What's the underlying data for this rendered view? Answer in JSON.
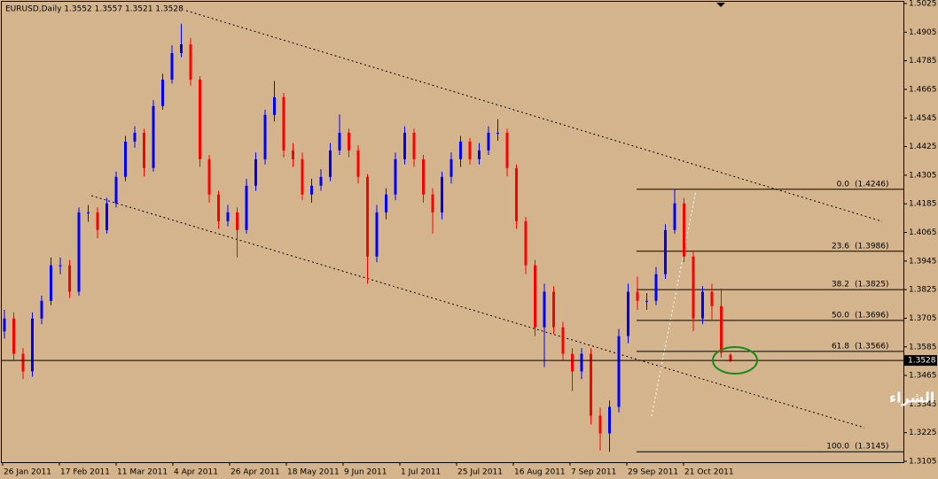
{
  "chart_data": {
    "type": "candlestick",
    "title": "EURUSD,Daily  1.3552 1.3557 1.3521 1.3528",
    "up_color": "#0000ff",
    "down_color": "#ff0000",
    "background": "#d4b48c",
    "ylim": [
      1.3105,
      1.5025
    ],
    "yticks": [
      1.5025,
      1.4905,
      1.4785,
      1.4665,
      1.4545,
      1.4425,
      1.4305,
      1.4185,
      1.4065,
      1.3945,
      1.3825,
      1.3705,
      1.3585,
      1.3465,
      1.3345,
      1.3225,
      1.3105
    ],
    "x_labels": [
      "26 Jan 2011",
      "17 Feb 2011",
      "11 Mar 2011",
      "4 Apr 2011",
      "26 Apr 2011",
      "18 May 2011",
      "9 Jun 2011",
      "1 Jul 2011",
      "25 Jul 2011",
      "16 Aug 2011",
      "7 Sep 2011",
      "29 Sep 2011",
      "21 Oct 2011"
    ],
    "last_price": 1.3528,
    "fibonacci": [
      {
        "level": "0.0",
        "price": 1.4246,
        "price_label": "(1.4246)"
      },
      {
        "level": "23.6",
        "price": 1.3986,
        "price_label": "(1.3986)"
      },
      {
        "level": "38.2",
        "price": 1.3825,
        "price_label": "(1.3825)"
      },
      {
        "level": "50.0",
        "price": 1.3696,
        "price_label": "(1.3696)"
      },
      {
        "level": "61.8",
        "price": 1.3566,
        "price_label": "(1.3566)"
      },
      {
        "level": "100.0",
        "price": 1.3145,
        "price_label": "(1.3145)"
      }
    ],
    "annotation": "اغلاق دايلي سلبي لا يشجع على الشراء",
    "candles": [
      [
        1.365,
        1.374,
        1.362,
        1.3704
      ],
      [
        1.3704,
        1.373,
        1.353,
        1.3556
      ],
      [
        1.3556,
        1.358,
        1.345,
        1.3482
      ],
      [
        1.3482,
        1.373,
        1.346,
        1.3704
      ],
      [
        1.3704,
        1.38,
        1.368,
        1.3778
      ],
      [
        1.3778,
        1.396,
        1.376,
        1.3927
      ],
      [
        1.3927,
        1.396,
        1.389,
        1.3927
      ],
      [
        1.3927,
        1.395,
        1.379,
        1.3816
      ],
      [
        1.3816,
        1.417,
        1.38,
        1.4149
      ],
      [
        1.4149,
        1.418,
        1.411,
        1.4149
      ],
      [
        1.4149,
        1.417,
        1.404,
        1.4075
      ],
      [
        1.4075,
        1.421,
        1.406,
        1.4187
      ],
      [
        1.4187,
        1.432,
        1.417,
        1.4298
      ],
      [
        1.4298,
        1.447,
        1.428,
        1.4446
      ],
      [
        1.4446,
        1.451,
        1.442,
        1.4483
      ],
      [
        1.4483,
        1.45,
        1.43,
        1.4335
      ],
      [
        1.4335,
        1.462,
        1.432,
        1.4595
      ],
      [
        1.4595,
        1.473,
        1.458,
        1.4706
      ],
      [
        1.4706,
        1.485,
        1.469,
        1.4817
      ],
      [
        1.4817,
        1.494,
        1.48,
        1.4854
      ],
      [
        1.4854,
        1.488,
        1.468,
        1.4706
      ],
      [
        1.4706,
        1.472,
        1.434,
        1.4372
      ],
      [
        1.4372,
        1.439,
        1.419,
        1.4224
      ],
      [
        1.4224,
        1.424,
        1.408,
        1.4112
      ],
      [
        1.4112,
        1.418,
        1.409,
        1.4149
      ],
      [
        1.4149,
        1.417,
        1.396,
        1.4075
      ],
      [
        1.4075,
        1.429,
        1.406,
        1.4261
      ],
      [
        1.4261,
        1.44,
        1.424,
        1.4372
      ],
      [
        1.4372,
        1.458,
        1.435,
        1.4558
      ],
      [
        1.4558,
        1.47,
        1.453,
        1.4632
      ],
      [
        1.4632,
        1.465,
        1.438,
        1.4409
      ],
      [
        1.4409,
        1.444,
        1.434,
        1.4372
      ],
      [
        1.4372,
        1.44,
        1.42,
        1.4224
      ],
      [
        1.4224,
        1.429,
        1.419,
        1.4261
      ],
      [
        1.4261,
        1.433,
        1.424,
        1.4298
      ],
      [
        1.4298,
        1.444,
        1.428,
        1.4409
      ],
      [
        1.4409,
        1.456,
        1.439,
        1.4483
      ],
      [
        1.4483,
        1.45,
        1.438,
        1.4409
      ],
      [
        1.4409,
        1.443,
        1.427,
        1.4298
      ],
      [
        1.4298,
        1.431,
        1.385,
        1.3964
      ],
      [
        1.3964,
        1.418,
        1.394,
        1.4149
      ],
      [
        1.4149,
        1.425,
        1.412,
        1.4224
      ],
      [
        1.4224,
        1.44,
        1.42,
        1.4372
      ],
      [
        1.4372,
        1.451,
        1.435,
        1.4483
      ],
      [
        1.4483,
        1.45,
        1.434,
        1.4372
      ],
      [
        1.4372,
        1.439,
        1.419,
        1.4224
      ],
      [
        1.4224,
        1.425,
        1.406,
        1.4149
      ],
      [
        1.4149,
        1.432,
        1.412,
        1.4298
      ],
      [
        1.4298,
        1.44,
        1.427,
        1.4372
      ],
      [
        1.4372,
        1.447,
        1.434,
        1.4446
      ],
      [
        1.4446,
        1.446,
        1.435,
        1.4372
      ],
      [
        1.4372,
        1.444,
        1.435,
        1.4409
      ],
      [
        1.4409,
        1.451,
        1.439,
        1.4483
      ],
      [
        1.4483,
        1.454,
        1.445,
        1.4483
      ],
      [
        1.4483,
        1.45,
        1.43,
        1.4335
      ],
      [
        1.4335,
        1.435,
        1.408,
        1.4112
      ],
      [
        1.4112,
        1.413,
        1.389,
        1.3927
      ],
      [
        1.3927,
        1.395,
        1.363,
        1.3667
      ],
      [
        1.3667,
        1.385,
        1.35,
        1.3816
      ],
      [
        1.3816,
        1.384,
        1.364,
        1.3667
      ],
      [
        1.3667,
        1.369,
        1.353,
        1.3556
      ],
      [
        1.3556,
        1.358,
        1.34,
        1.3482
      ],
      [
        1.3482,
        1.358,
        1.345,
        1.3556
      ],
      [
        1.3556,
        1.358,
        1.326,
        1.3296
      ],
      [
        1.3296,
        1.333,
        1.315,
        1.3222
      ],
      [
        1.3222,
        1.336,
        1.3145,
        1.3333
      ],
      [
        1.3333,
        1.366,
        1.331,
        1.363
      ],
      [
        1.363,
        1.385,
        1.36,
        1.3816
      ],
      [
        1.3816,
        1.388,
        1.374,
        1.3778
      ],
      [
        1.3778,
        1.381,
        1.374,
        1.3778
      ],
      [
        1.3778,
        1.392,
        1.376,
        1.389
      ],
      [
        1.389,
        1.41,
        1.387,
        1.4075
      ],
      [
        1.4075,
        1.4246,
        1.406,
        1.4187
      ],
      [
        1.4187,
        1.421,
        1.394,
        1.3964
      ],
      [
        1.3964,
        1.399,
        1.365,
        1.3704
      ],
      [
        1.3704,
        1.384,
        1.368,
        1.3816
      ],
      [
        1.3816,
        1.385,
        1.37,
        1.3756
      ],
      [
        1.3756,
        1.383,
        1.354,
        1.356
      ],
      [
        1.3552,
        1.3557,
        1.3521,
        1.3528
      ]
    ]
  }
}
